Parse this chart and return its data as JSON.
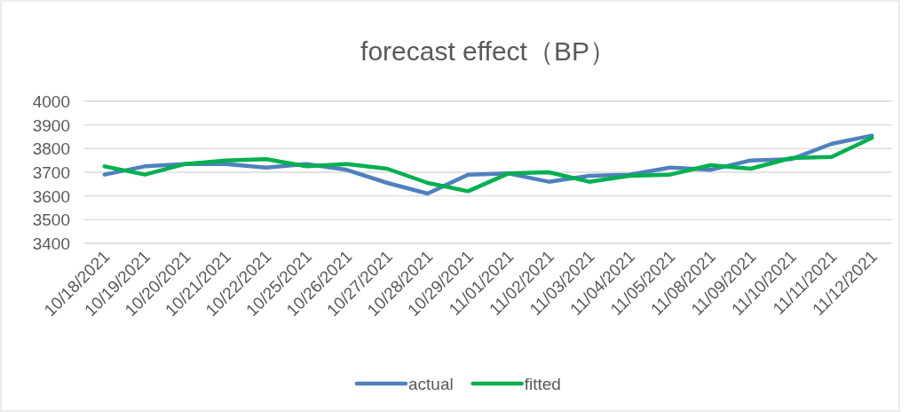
{
  "chart_data": {
    "type": "line",
    "title": "forecast effect（BP）",
    "categories": [
      "10/18/2021",
      "10/19/2021",
      "10/20/2021",
      "10/21/2021",
      "10/22/2021",
      "10/25/2021",
      "10/26/2021",
      "10/27/2021",
      "10/28/2021",
      "10/29/2021",
      "11/01/2021",
      "11/02/2021",
      "11/03/2021",
      "11/04/2021",
      "11/05/2021",
      "11/08/2021",
      "11/09/2021",
      "11/10/2021",
      "11/11/2021",
      "11/12/2021"
    ],
    "series": [
      {
        "name": "actual",
        "color": "#4f81bd",
        "values": [
          3690,
          3725,
          3735,
          3735,
          3720,
          3735,
          3710,
          3655,
          3610,
          3690,
          3695,
          3660,
          3685,
          3690,
          3720,
          3710,
          3750,
          3755,
          3820,
          3855
        ]
      },
      {
        "name": "fitted",
        "color": "#00b050",
        "values": [
          3725,
          3690,
          3735,
          3750,
          3755,
          3725,
          3735,
          3715,
          3655,
          3620,
          3695,
          3700,
          3660,
          3685,
          3690,
          3730,
          3715,
          3760,
          3765,
          3845
        ]
      }
    ],
    "ylim": [
      3400,
      4000
    ],
    "yticks": [
      3400,
      3500,
      3600,
      3700,
      3800,
      3900,
      4000
    ],
    "grid": "y",
    "legend": "bottom",
    "marker": "none",
    "line_style": "solid"
  }
}
